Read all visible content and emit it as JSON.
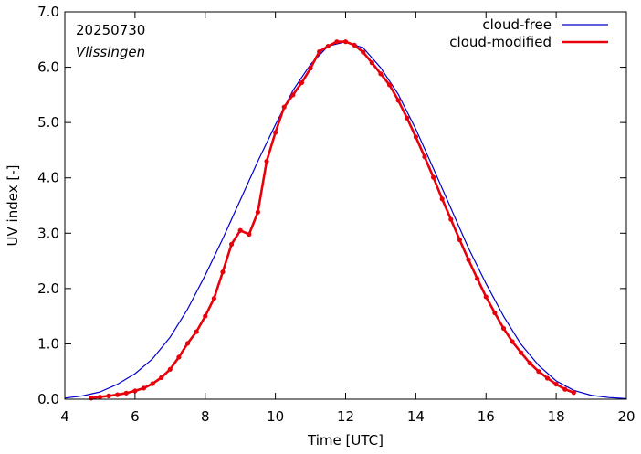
{
  "chart_data": {
    "type": "line",
    "title": "",
    "xlabel": "Time  [UTC]",
    "ylabel": "UV index  [-]",
    "xlim": [
      4,
      20
    ],
    "ylim": [
      0,
      7
    ],
    "x_ticks": [
      4,
      6,
      8,
      10,
      12,
      14,
      16,
      18,
      20
    ],
    "x_tick_labels": [
      "4",
      "6",
      "8",
      "10",
      "12",
      "14",
      "16",
      "18",
      "20"
    ],
    "y_ticks": [
      0,
      1,
      2,
      3,
      4,
      5,
      6,
      7
    ],
    "y_tick_labels": [
      "0.0",
      "1.0",
      "2.0",
      "3.0",
      "4.0",
      "5.0",
      "6.0",
      "7.0"
    ],
    "grid": false,
    "legend_position": "top-right",
    "annotations": {
      "date": "20250730",
      "station": "Vlissingen"
    },
    "series": [
      {
        "name": "cloud-free",
        "color": "#0000cc",
        "markers": false,
        "x": [
          4.0,
          4.5,
          5.0,
          5.5,
          6.0,
          6.5,
          7.0,
          7.5,
          8.0,
          8.5,
          9.0,
          9.5,
          10.0,
          10.5,
          11.0,
          11.5,
          12.0,
          12.5,
          13.0,
          13.5,
          14.0,
          14.5,
          15.0,
          15.5,
          16.0,
          16.5,
          17.0,
          17.5,
          18.0,
          18.5,
          19.0,
          19.5,
          20.0
        ],
        "values": [
          0.02,
          0.06,
          0.13,
          0.27,
          0.46,
          0.73,
          1.12,
          1.63,
          2.24,
          2.9,
          3.6,
          4.3,
          4.96,
          5.58,
          6.05,
          6.38,
          6.46,
          6.35,
          5.99,
          5.51,
          4.88,
          4.17,
          3.45,
          2.73,
          2.09,
          1.5,
          0.99,
          0.61,
          0.33,
          0.16,
          0.07,
          0.03,
          0.01
        ]
      },
      {
        "name": "cloud-modified",
        "color": "#e8000b",
        "markers": true,
        "x": [
          4.75,
          5.0,
          5.25,
          5.5,
          5.75,
          6.0,
          6.25,
          6.5,
          6.75,
          7.0,
          7.25,
          7.5,
          7.75,
          8.0,
          8.25,
          8.5,
          8.75,
          9.0,
          9.25,
          9.5,
          9.75,
          10.0,
          10.25,
          10.5,
          10.75,
          11.0,
          11.25,
          11.5,
          11.75,
          12.0,
          12.25,
          12.5,
          12.75,
          13.0,
          13.25,
          13.5,
          13.75,
          14.0,
          14.25,
          14.5,
          14.75,
          15.0,
          15.25,
          15.5,
          15.75,
          16.0,
          16.25,
          16.5,
          16.75,
          17.0,
          17.25,
          17.5,
          17.75,
          18.0,
          18.25,
          18.5
        ],
        "values": [
          0.02,
          0.04,
          0.06,
          0.08,
          0.11,
          0.15,
          0.2,
          0.28,
          0.39,
          0.54,
          0.76,
          1.01,
          1.22,
          1.5,
          1.82,
          2.3,
          2.8,
          3.05,
          2.98,
          3.38,
          4.3,
          4.82,
          5.28,
          5.5,
          5.72,
          5.98,
          6.28,
          6.38,
          6.46,
          6.46,
          6.4,
          6.27,
          6.08,
          5.88,
          5.68,
          5.4,
          5.08,
          4.74,
          4.38,
          4.01,
          3.62,
          3.25,
          2.88,
          2.52,
          2.18,
          1.85,
          1.56,
          1.28,
          1.04,
          0.84,
          0.65,
          0.5,
          0.38,
          0.27,
          0.18,
          0.12
        ]
      }
    ]
  }
}
